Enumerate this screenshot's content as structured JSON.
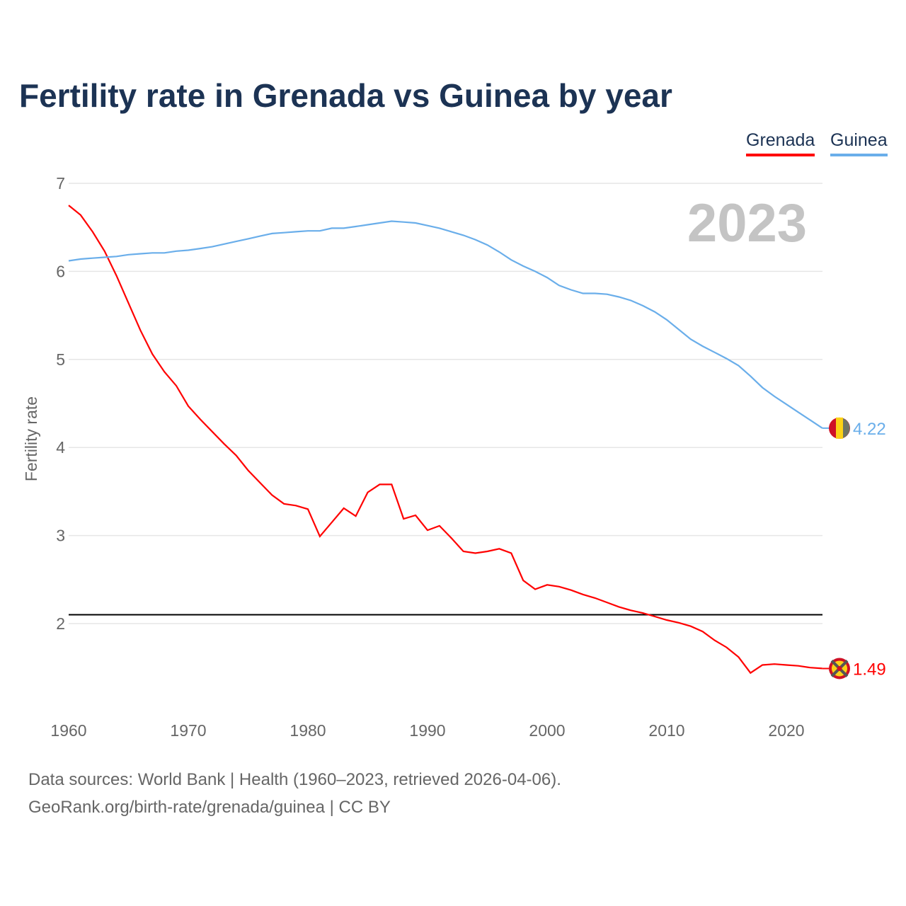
{
  "title": "Fertility rate in Grenada vs Guinea by year",
  "footer": {
    "line1": "Data sources: World Bank | Health (1960–2023, retrieved 2026-04-06).",
    "line2": "GeoRank.org/birth-rate/grenada/guinea | CC BY"
  },
  "chart_data": {
    "type": "line",
    "title": "Fertility rate in Grenada vs Guinea by year",
    "xlabel": "",
    "ylabel": "Fertility rate",
    "xlim": [
      1960,
      2023
    ],
    "ylim": [
      1,
      7
    ],
    "yticks": [
      "2",
      "3",
      "4",
      "5",
      "6",
      "7"
    ],
    "xticks": [
      "1960",
      "1970",
      "1980",
      "1990",
      "2000",
      "2010",
      "2020"
    ],
    "grid": true,
    "legend": "top-right",
    "year_label": "2023",
    "reference_line": 2.1,
    "x": [
      1960,
      1961,
      1962,
      1963,
      1964,
      1965,
      1966,
      1967,
      1968,
      1969,
      1970,
      1971,
      1972,
      1973,
      1974,
      1975,
      1976,
      1977,
      1978,
      1979,
      1980,
      1981,
      1982,
      1983,
      1984,
      1985,
      1986,
      1987,
      1988,
      1989,
      1990,
      1991,
      1992,
      1993,
      1994,
      1995,
      1996,
      1997,
      1998,
      1999,
      2000,
      2001,
      2002,
      2003,
      2004,
      2005,
      2006,
      2007,
      2008,
      2009,
      2010,
      2011,
      2012,
      2013,
      2014,
      2015,
      2016,
      2017,
      2018,
      2019,
      2020,
      2021,
      2022,
      2023
    ],
    "series": [
      {
        "name": "Grenada",
        "color": "#ff0000",
        "end_label": "1.49",
        "values": [
          6.75,
          6.64,
          6.45,
          6.23,
          5.95,
          5.64,
          5.33,
          5.06,
          4.86,
          4.7,
          4.47,
          4.32,
          4.18,
          4.04,
          3.91,
          3.74,
          3.6,
          3.46,
          3.36,
          3.34,
          3.3,
          2.99,
          3.15,
          3.31,
          3.22,
          3.49,
          3.58,
          3.58,
          3.19,
          3.23,
          3.06,
          3.11,
          2.97,
          2.82,
          2.8,
          2.82,
          2.85,
          2.8,
          2.49,
          2.39,
          2.44,
          2.42,
          2.38,
          2.33,
          2.29,
          2.24,
          2.19,
          2.15,
          2.12,
          2.08,
          2.04,
          2.01,
          1.97,
          1.91,
          1.81,
          1.73,
          1.62,
          1.44,
          1.53,
          1.54,
          1.53,
          1.52,
          1.5,
          1.49
        ]
      },
      {
        "name": "Guinea",
        "color": "#6aaeea",
        "end_label": "4.22",
        "values": [
          6.12,
          6.14,
          6.15,
          6.16,
          6.17,
          6.19,
          6.2,
          6.21,
          6.21,
          6.23,
          6.24,
          6.26,
          6.28,
          6.31,
          6.34,
          6.37,
          6.4,
          6.43,
          6.44,
          6.45,
          6.46,
          6.46,
          6.49,
          6.49,
          6.51,
          6.53,
          6.55,
          6.57,
          6.56,
          6.55,
          6.52,
          6.49,
          6.45,
          6.41,
          6.36,
          6.3,
          6.22,
          6.13,
          6.06,
          6.0,
          5.93,
          5.84,
          5.79,
          5.75,
          5.75,
          5.74,
          5.71,
          5.67,
          5.61,
          5.54,
          5.45,
          5.34,
          5.23,
          5.15,
          5.08,
          5.01,
          4.93,
          4.81,
          4.68,
          4.58,
          4.49,
          4.4,
          4.31,
          4.22
        ]
      }
    ]
  }
}
